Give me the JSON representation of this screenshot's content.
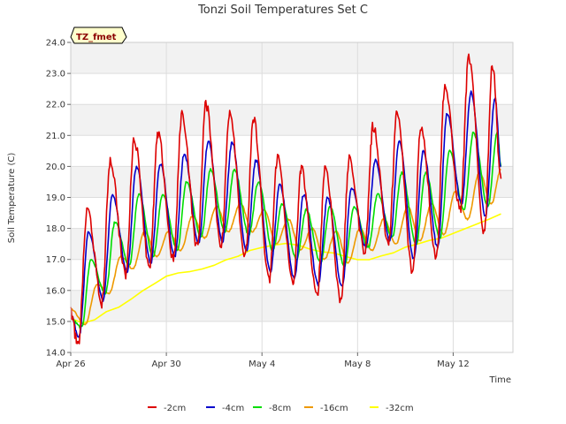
{
  "chart_data": {
    "type": "line",
    "title": "Tonzi Soil Temperatures Set C",
    "xlabel": "Time",
    "ylabel": "Soil Temperature (C)",
    "badge": "TZ_fmet",
    "ylim": [
      14.0,
      24.0
    ],
    "yticks": [
      "14.0",
      "15.0",
      "16.0",
      "17.0",
      "18.0",
      "19.0",
      "20.0",
      "21.0",
      "22.0",
      "23.0",
      "24.0"
    ],
    "xlim": [
      0,
      18.5
    ],
    "xticks": [
      {
        "label": "Apr 26",
        "day": 0
      },
      {
        "label": "Apr 30",
        "day": 4
      },
      {
        "label": "May 4",
        "day": 8
      },
      {
        "label": "May 8",
        "day": 12
      },
      {
        "label": "May 12",
        "day": 16
      }
    ],
    "grid": true,
    "legend_position": "bottom",
    "series": [
      {
        "name": "-2cm",
        "color": "#dd0000",
        "peaks": [
          {
            "t": 0.0,
            "v": 15.3
          },
          {
            "t": 0.7,
            "v": 18.6
          },
          {
            "t": 1.65,
            "v": 20.2
          },
          {
            "t": 2.65,
            "v": 20.9
          },
          {
            "t": 3.65,
            "v": 21.0
          },
          {
            "t": 4.65,
            "v": 21.7
          },
          {
            "t": 5.65,
            "v": 22.0
          },
          {
            "t": 6.65,
            "v": 21.8
          },
          {
            "t": 7.65,
            "v": 21.5
          },
          {
            "t": 8.65,
            "v": 20.3
          },
          {
            "t": 9.65,
            "v": 19.9
          },
          {
            "t": 10.65,
            "v": 20.0
          },
          {
            "t": 11.65,
            "v": 20.2
          },
          {
            "t": 12.65,
            "v": 21.3
          },
          {
            "t": 13.65,
            "v": 21.7
          },
          {
            "t": 14.65,
            "v": 21.3
          },
          {
            "t": 15.65,
            "v": 22.6
          },
          {
            "t": 16.65,
            "v": 23.5
          },
          {
            "t": 17.65,
            "v": 23.3
          }
        ],
        "troughs": [
          {
            "t": 0.3,
            "v": 14.2
          },
          {
            "t": 1.3,
            "v": 15.6
          },
          {
            "t": 2.3,
            "v": 16.5
          },
          {
            "t": 3.3,
            "v": 16.8
          },
          {
            "t": 4.3,
            "v": 17.0
          },
          {
            "t": 5.3,
            "v": 17.4
          },
          {
            "t": 6.3,
            "v": 17.5
          },
          {
            "t": 7.3,
            "v": 17.1
          },
          {
            "t": 8.3,
            "v": 16.3
          },
          {
            "t": 9.3,
            "v": 16.2
          },
          {
            "t": 10.3,
            "v": 15.8
          },
          {
            "t": 11.3,
            "v": 15.7
          },
          {
            "t": 12.3,
            "v": 17.3
          },
          {
            "t": 13.3,
            "v": 17.5
          },
          {
            "t": 14.3,
            "v": 16.6
          },
          {
            "t": 15.3,
            "v": 17.1
          },
          {
            "t": 16.3,
            "v": 18.6
          },
          {
            "t": 17.3,
            "v": 17.9
          },
          {
            "t": 18.0,
            "v": 19.6
          }
        ]
      },
      {
        "name": "-4cm",
        "color": "#0000cc",
        "peaks": [
          {
            "t": 0.0,
            "v": 15.2
          },
          {
            "t": 0.75,
            "v": 17.9
          },
          {
            "t": 1.75,
            "v": 19.1
          },
          {
            "t": 2.75,
            "v": 20.0
          },
          {
            "t": 3.75,
            "v": 20.1
          },
          {
            "t": 4.75,
            "v": 20.4
          },
          {
            "t": 5.75,
            "v": 20.8
          },
          {
            "t": 6.75,
            "v": 20.8
          },
          {
            "t": 7.75,
            "v": 20.2
          },
          {
            "t": 8.75,
            "v": 19.4
          },
          {
            "t": 9.75,
            "v": 19.1
          },
          {
            "t": 10.75,
            "v": 19.0
          },
          {
            "t": 11.75,
            "v": 19.3
          },
          {
            "t": 12.75,
            "v": 20.2
          },
          {
            "t": 13.75,
            "v": 20.8
          },
          {
            "t": 14.75,
            "v": 20.5
          },
          {
            "t": 15.75,
            "v": 21.7
          },
          {
            "t": 16.75,
            "v": 22.4
          },
          {
            "t": 17.75,
            "v": 22.2
          }
        ],
        "troughs": [
          {
            "t": 0.35,
            "v": 14.5
          },
          {
            "t": 1.35,
            "v": 15.7
          },
          {
            "t": 2.35,
            "v": 16.6
          },
          {
            "t": 3.35,
            "v": 16.9
          },
          {
            "t": 4.35,
            "v": 17.1
          },
          {
            "t": 5.35,
            "v": 17.5
          },
          {
            "t": 6.35,
            "v": 17.6
          },
          {
            "t": 7.35,
            "v": 17.3
          },
          {
            "t": 8.35,
            "v": 16.6
          },
          {
            "t": 9.35,
            "v": 16.4
          },
          {
            "t": 10.35,
            "v": 16.2
          },
          {
            "t": 11.35,
            "v": 16.1
          },
          {
            "t": 12.35,
            "v": 17.4
          },
          {
            "t": 13.35,
            "v": 17.6
          },
          {
            "t": 14.35,
            "v": 17.0
          },
          {
            "t": 15.35,
            "v": 17.4
          },
          {
            "t": 16.35,
            "v": 18.8
          },
          {
            "t": 17.35,
            "v": 18.4
          },
          {
            "t": 18.0,
            "v": 20.0
          }
        ]
      },
      {
        "name": "-8cm",
        "color": "#00dd00",
        "peaks": [
          {
            "t": 0.0,
            "v": 15.1
          },
          {
            "t": 0.85,
            "v": 17.0
          },
          {
            "t": 1.85,
            "v": 18.2
          },
          {
            "t": 2.85,
            "v": 19.1
          },
          {
            "t": 3.85,
            "v": 19.1
          },
          {
            "t": 4.85,
            "v": 19.5
          },
          {
            "t": 5.85,
            "v": 19.9
          },
          {
            "t": 6.85,
            "v": 19.9
          },
          {
            "t": 7.85,
            "v": 19.5
          },
          {
            "t": 8.85,
            "v": 18.8
          },
          {
            "t": 9.85,
            "v": 18.6
          },
          {
            "t": 10.85,
            "v": 18.7
          },
          {
            "t": 11.85,
            "v": 18.7
          },
          {
            "t": 12.85,
            "v": 19.1
          },
          {
            "t": 13.85,
            "v": 19.8
          },
          {
            "t": 14.85,
            "v": 19.8
          },
          {
            "t": 15.85,
            "v": 20.5
          },
          {
            "t": 16.85,
            "v": 21.1
          },
          {
            "t": 17.85,
            "v": 21.1
          }
        ],
        "troughs": [
          {
            "t": 0.45,
            "v": 14.8
          },
          {
            "t": 1.45,
            "v": 15.9
          },
          {
            "t": 2.45,
            "v": 16.8
          },
          {
            "t": 3.45,
            "v": 17.1
          },
          {
            "t": 4.45,
            "v": 17.3
          },
          {
            "t": 5.45,
            "v": 17.7
          },
          {
            "t": 6.45,
            "v": 17.9
          },
          {
            "t": 7.45,
            "v": 17.8
          },
          {
            "t": 8.45,
            "v": 17.3
          },
          {
            "t": 9.45,
            "v": 17.0
          },
          {
            "t": 10.45,
            "v": 16.9
          },
          {
            "t": 11.45,
            "v": 16.8
          },
          {
            "t": 12.45,
            "v": 17.4
          },
          {
            "t": 13.45,
            "v": 17.7
          },
          {
            "t": 14.45,
            "v": 17.5
          },
          {
            "t": 15.45,
            "v": 17.7
          },
          {
            "t": 16.45,
            "v": 18.6
          },
          {
            "t": 17.45,
            "v": 18.7
          },
          {
            "t": 18.0,
            "v": 20.0
          }
        ]
      },
      {
        "name": "-16cm",
        "color": "#ee9900",
        "peaks": [
          {
            "t": 0.0,
            "v": 15.4
          },
          {
            "t": 1.1,
            "v": 16.2
          },
          {
            "t": 2.1,
            "v": 17.1
          },
          {
            "t": 3.1,
            "v": 17.9
          },
          {
            "t": 4.1,
            "v": 17.9
          },
          {
            "t": 5.1,
            "v": 18.4
          },
          {
            "t": 6.1,
            "v": 18.7
          },
          {
            "t": 7.1,
            "v": 18.8
          },
          {
            "t": 8.1,
            "v": 18.6
          },
          {
            "t": 9.1,
            "v": 18.3
          },
          {
            "t": 10.1,
            "v": 18.0
          },
          {
            "t": 11.1,
            "v": 17.9
          },
          {
            "t": 12.1,
            "v": 18.0
          },
          {
            "t": 13.1,
            "v": 18.3
          },
          {
            "t": 14.1,
            "v": 18.7
          },
          {
            "t": 15.1,
            "v": 18.8
          },
          {
            "t": 16.1,
            "v": 19.2
          },
          {
            "t": 17.1,
            "v": 19.8
          },
          {
            "t": 18.0,
            "v": 19.9
          }
        ],
        "troughs": [
          {
            "t": 0.6,
            "v": 14.9
          },
          {
            "t": 1.6,
            "v": 15.9
          },
          {
            "t": 2.6,
            "v": 16.7
          },
          {
            "t": 3.6,
            "v": 17.1
          },
          {
            "t": 4.6,
            "v": 17.3
          },
          {
            "t": 5.6,
            "v": 17.7
          },
          {
            "t": 6.6,
            "v": 17.9
          },
          {
            "t": 7.6,
            "v": 17.9
          },
          {
            "t": 8.6,
            "v": 17.5
          },
          {
            "t": 9.6,
            "v": 17.3
          },
          {
            "t": 10.6,
            "v": 17.0
          },
          {
            "t": 11.6,
            "v": 16.9
          },
          {
            "t": 12.6,
            "v": 17.3
          },
          {
            "t": 13.6,
            "v": 17.5
          },
          {
            "t": 14.6,
            "v": 17.6
          },
          {
            "t": 15.6,
            "v": 17.8
          },
          {
            "t": 16.6,
            "v": 18.3
          },
          {
            "t": 17.6,
            "v": 18.8
          }
        ]
      },
      {
        "name": "-32cm",
        "color": "#ffff00",
        "x": [
          0.0,
          0.5,
          1.0,
          1.5,
          2.0,
          2.5,
          3.0,
          3.5,
          4.0,
          4.5,
          5.0,
          5.5,
          6.0,
          6.5,
          7.0,
          7.5,
          8.0,
          8.5,
          9.0,
          9.5,
          10.0,
          10.5,
          11.0,
          11.5,
          12.0,
          12.5,
          13.0,
          13.5,
          14.0,
          14.5,
          15.0,
          15.5,
          16.0,
          16.5,
          17.0,
          17.5,
          18.0
        ],
        "y": [
          15.1,
          14.95,
          15.05,
          15.3,
          15.45,
          15.7,
          16.0,
          16.2,
          16.45,
          16.55,
          16.6,
          16.7,
          16.8,
          17.0,
          17.1,
          17.3,
          17.4,
          17.45,
          17.5,
          17.45,
          17.35,
          17.25,
          17.2,
          17.1,
          17.0,
          17.0,
          17.1,
          17.2,
          17.4,
          17.5,
          17.6,
          17.7,
          17.85,
          18.0,
          18.15,
          18.3,
          18.45
        ]
      }
    ]
  }
}
